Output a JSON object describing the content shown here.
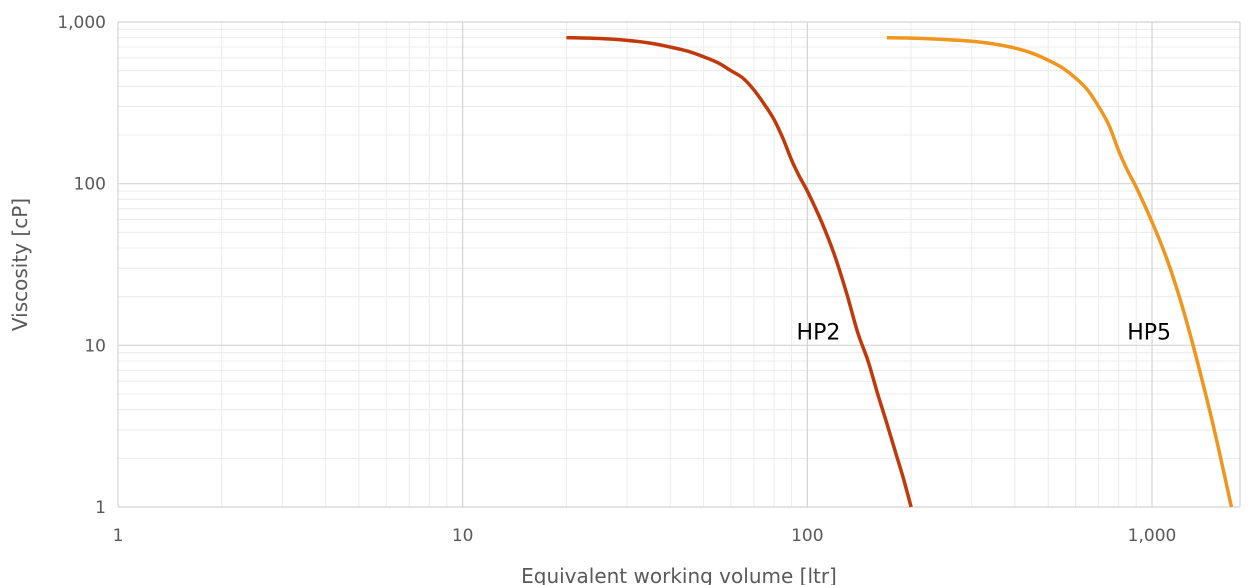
{
  "chart_data": {
    "type": "line",
    "title": "",
    "xlabel": "Equivalent working volume [ltr]",
    "ylabel": "Viscosity [cP]",
    "x_scale": "log",
    "y_scale": "log",
    "xlim": [
      1,
      1800
    ],
    "ylim": [
      1,
      1000
    ],
    "x_ticks": [
      1,
      10,
      100,
      1000
    ],
    "x_tick_labels": [
      "1",
      "10",
      "100",
      "1,000"
    ],
    "y_ticks": [
      1,
      10,
      100,
      1000
    ],
    "y_tick_labels": [
      "1",
      "10",
      "100",
      "1,000"
    ],
    "grid": true,
    "legend": "none",
    "series": [
      {
        "name": "HP2",
        "color": "#c0390b",
        "points": [
          [
            20,
            800
          ],
          [
            25,
            790
          ],
          [
            30,
            770
          ],
          [
            35,
            740
          ],
          [
            40,
            700
          ],
          [
            45,
            660
          ],
          [
            50,
            610
          ],
          [
            55,
            560
          ],
          [
            60,
            500
          ],
          [
            65,
            450
          ],
          [
            70,
            380
          ],
          [
            75,
            310
          ],
          [
            80,
            250
          ],
          [
            85,
            190
          ],
          [
            90,
            140
          ],
          [
            95,
            110
          ],
          [
            100,
            90
          ],
          [
            110,
            58
          ],
          [
            120,
            36
          ],
          [
            130,
            21
          ],
          [
            140,
            12
          ],
          [
            150,
            8
          ],
          [
            160,
            5
          ],
          [
            170,
            3.3
          ],
          [
            180,
            2.2
          ],
          [
            190,
            1.5
          ],
          [
            200,
            1
          ]
        ]
      },
      {
        "name": "HP5",
        "color": "#f0961e",
        "points": [
          [
            170,
            800
          ],
          [
            200,
            795
          ],
          [
            250,
            780
          ],
          [
            300,
            760
          ],
          [
            350,
            730
          ],
          [
            400,
            690
          ],
          [
            450,
            640
          ],
          [
            500,
            580
          ],
          [
            550,
            520
          ],
          [
            600,
            450
          ],
          [
            650,
            380
          ],
          [
            700,
            300
          ],
          [
            750,
            230
          ],
          [
            800,
            160
          ],
          [
            850,
            120
          ],
          [
            900,
            95
          ],
          [
            1000,
            58
          ],
          [
            1100,
            35
          ],
          [
            1200,
            20
          ],
          [
            1300,
            11
          ],
          [
            1400,
            6
          ],
          [
            1500,
            3.3
          ],
          [
            1600,
            1.8
          ],
          [
            1700,
            1
          ]
        ]
      }
    ]
  }
}
